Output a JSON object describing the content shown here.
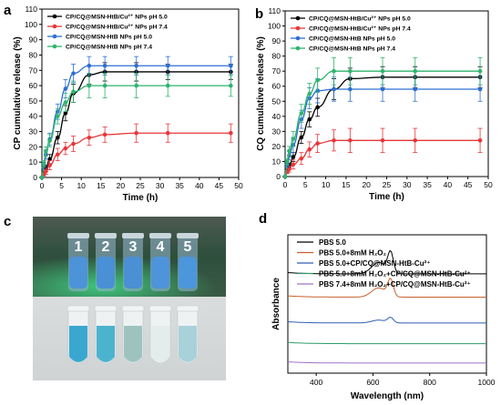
{
  "panels": {
    "a": "a",
    "b": "b",
    "c": "c",
    "d": "d"
  },
  "vial_numbers": [
    "1",
    "2",
    "3",
    "4",
    "5"
  ],
  "chart_data": [
    {
      "id": "a",
      "type": "line",
      "xlabel": "Time (h)",
      "ylabel": "CP cumulative release (%)",
      "xlim": [
        0,
        50
      ],
      "ylim": [
        0,
        110
      ],
      "xticks": [
        0,
        5,
        10,
        15,
        20,
        25,
        30,
        35,
        40,
        45,
        50
      ],
      "yticks": [
        0,
        10,
        20,
        30,
        40,
        50,
        60,
        70,
        80,
        90,
        100,
        110
      ],
      "x": [
        0,
        0.5,
        1,
        2,
        4,
        6,
        8,
        12,
        16,
        24,
        32,
        48
      ],
      "legend_position": "top-left",
      "series": [
        {
          "name": "CP/CQ@MSN-HtB/Cu²⁺ NPs pH 5.0",
          "color": "#000000",
          "values": [
            0,
            3,
            6,
            12,
            26,
            42,
            55,
            67,
            69,
            69,
            69,
            69
          ],
          "errors": [
            0,
            1,
            2,
            3,
            4,
            5,
            6,
            6,
            6,
            6,
            5,
            5
          ]
        },
        {
          "name": "CP/CQ@MSN-HtB/Cu²⁺ NPs pH 7.4",
          "color": "#e8373a",
          "values": [
            0,
            2,
            4,
            8,
            15,
            19,
            22,
            26,
            28,
            29,
            29,
            29
          ],
          "errors": [
            0,
            1,
            2,
            3,
            4,
            4,
            5,
            5,
            5,
            6,
            6,
            6
          ]
        },
        {
          "name": "CP/CQ@MSN-HtB NPs pH 5.0",
          "color": "#2f6fd0",
          "values": [
            0,
            8,
            15,
            25,
            43,
            58,
            68,
            73,
            73,
            73,
            73,
            73
          ],
          "errors": [
            0,
            2,
            3,
            4,
            5,
            6,
            6,
            6,
            6,
            6,
            6,
            6
          ]
        },
        {
          "name": "CP/CQ@MSN-HtB NPs pH 7.4",
          "color": "#2fb36e",
          "values": [
            0,
            9,
            17,
            24,
            40,
            49,
            56,
            60,
            60,
            60,
            60,
            60
          ],
          "errors": [
            0,
            2,
            3,
            4,
            5,
            6,
            7,
            8,
            8,
            8,
            7,
            7
          ]
        }
      ]
    },
    {
      "id": "b",
      "type": "line",
      "xlabel": "Time (h)",
      "ylabel": "CQ cumulative release (%)",
      "xlim": [
        0,
        50
      ],
      "ylim": [
        0,
        110
      ],
      "xticks": [
        0,
        5,
        10,
        15,
        20,
        25,
        30,
        35,
        40,
        45,
        50
      ],
      "yticks": [
        0,
        10,
        20,
        30,
        40,
        50,
        60,
        70,
        80,
        90,
        100,
        110
      ],
      "x": [
        0,
        0.5,
        1,
        2,
        4,
        6,
        8,
        12,
        16,
        24,
        32,
        48
      ],
      "legend_position": "top-left",
      "series": [
        {
          "name": "CP/CQ@MSN-HtB/Cu²⁺ NPs pH 5.0",
          "color": "#000000",
          "values": [
            0,
            4,
            7,
            13,
            26,
            38,
            46,
            58,
            65,
            66,
            66,
            66
          ],
          "errors": [
            0,
            1,
            2,
            3,
            4,
            5,
            6,
            7,
            7,
            7,
            7,
            7
          ]
        },
        {
          "name": "CP/CQ@MSN-HtB/Cu²⁺ NPs pH 7.4",
          "color": "#e8373a",
          "values": [
            0,
            3,
            5,
            8,
            12,
            18,
            22,
            24,
            24,
            24,
            24,
            24
          ],
          "errors": [
            0,
            1,
            2,
            3,
            4,
            5,
            6,
            7,
            8,
            8,
            8,
            8
          ]
        },
        {
          "name": "CP/CQ@MSN-HtB NPs pH 5.0",
          "color": "#2f6fd0",
          "values": [
            0,
            8,
            14,
            21,
            38,
            52,
            57,
            58,
            58,
            58,
            58,
            58
          ],
          "errors": [
            0,
            2,
            3,
            5,
            6,
            7,
            8,
            8,
            8,
            8,
            8,
            8
          ]
        },
        {
          "name": "CP/CQ@MSN-HtB NPs pH 7.4",
          "color": "#2fb36e",
          "values": [
            0,
            10,
            17,
            25,
            42,
            55,
            64,
            70,
            70,
            70,
            70,
            70
          ],
          "errors": [
            0,
            2,
            3,
            5,
            6,
            7,
            8,
            9,
            9,
            9,
            9,
            9
          ]
        }
      ]
    },
    {
      "id": "d",
      "type": "line",
      "xlabel": "Wavelength (nm)",
      "ylabel": "Absorbance",
      "xlim": [
        300,
        1000
      ],
      "xticks": [
        400,
        600,
        800,
        1000
      ],
      "legend_position": "top-left",
      "series": [
        {
          "name": "PBS 5.0",
          "color": "#000000",
          "baseline": 0.74,
          "peak": 0.16
        },
        {
          "name": "PBS 5.0+8mM H₂O₂",
          "color": "#c8602e",
          "baseline": 0.56,
          "peak": 0.13
        },
        {
          "name": "PBS 5.0+CP/CQ@MSN-HtB-Cu²⁺",
          "color": "#2f5fb5",
          "baseline": 0.36,
          "peak": 0.04
        },
        {
          "name": "PBS 5.0+8mM H₂O₂+CP/CQ@MSN-HtB-Cu²⁺",
          "color": "#2e9a6a",
          "baseline": 0.2,
          "peak": 0.0
        },
        {
          "name": "PBS 7.4+8mM H₂O₂+CP/CQ@MSN-HtB-Cu²⁺",
          "color": "#a070c8",
          "baseline": 0.05,
          "peak": 0.0
        }
      ]
    }
  ]
}
